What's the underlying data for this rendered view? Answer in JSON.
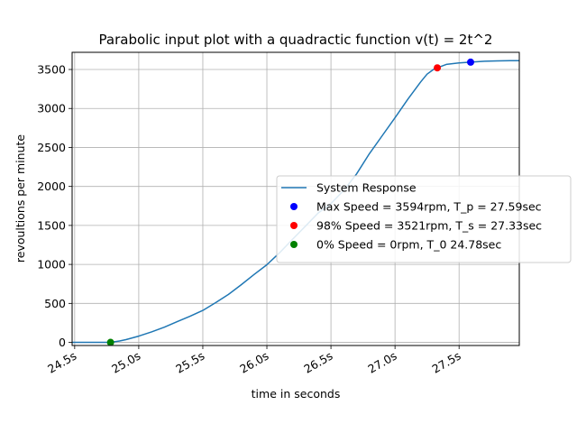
{
  "chart_data": {
    "type": "line",
    "title": "Parabolic input plot with a quadractic function v(t) = 2t^2",
    "xlabel": "time in seconds",
    "ylabel": "revoultions per minute",
    "xlim": [
      24.48,
      27.97
    ],
    "ylim": [
      -40,
      3720
    ],
    "x_ticks": [
      24.5,
      25.0,
      25.5,
      26.0,
      26.5,
      27.0,
      27.5
    ],
    "x_tick_labels": [
      "24.5s",
      "25.0s",
      "25.5s",
      "26.0s",
      "26.5s",
      "27.0s",
      "27.5s"
    ],
    "y_ticks": [
      0,
      500,
      1000,
      1500,
      2000,
      2500,
      3000,
      3500
    ],
    "y_tick_labels": [
      "0",
      "500",
      "1000",
      "1500",
      "2000",
      "2500",
      "3000",
      "3500"
    ],
    "grid": true,
    "legend_position": "center-right",
    "series": [
      {
        "name": "System Response",
        "kind": "line",
        "color": "#1f77b4",
        "x": [
          24.48,
          24.78,
          24.85,
          24.9,
          25.0,
          25.1,
          25.2,
          25.3,
          25.4,
          25.5,
          25.6,
          25.7,
          25.8,
          25.9,
          26.0,
          26.1,
          26.2,
          26.3,
          26.4,
          26.5,
          26.6,
          26.7,
          26.8,
          26.9,
          27.0,
          27.1,
          27.2,
          27.25,
          27.3,
          27.33,
          27.4,
          27.5,
          27.59,
          27.7,
          27.8,
          27.9,
          27.97
        ],
        "y": [
          0,
          0,
          18,
          35,
          80,
          135,
          195,
          265,
          335,
          410,
          510,
          615,
          740,
          870,
          995,
          1150,
          1320,
          1490,
          1660,
          1780,
          1950,
          2160,
          2420,
          2650,
          2880,
          3120,
          3340,
          3440,
          3500,
          3521,
          3565,
          3585,
          3594,
          3605,
          3610,
          3612,
          3612
        ]
      },
      {
        "name": "Max Speed = 3594rpm, T_p = 27.59sec",
        "kind": "point",
        "color": "#0000ff",
        "x": [
          27.59
        ],
        "y": [
          3594
        ]
      },
      {
        "name": "98% Speed = 3521rpm, T_s = 27.33sec",
        "kind": "point",
        "color": "#ff0000",
        "x": [
          27.33
        ],
        "y": [
          3521
        ]
      },
      {
        "name": "0% Speed = 0rpm, T_0 24.78sec",
        "kind": "point",
        "color": "#008000",
        "x": [
          24.78
        ],
        "y": [
          0
        ]
      }
    ]
  }
}
